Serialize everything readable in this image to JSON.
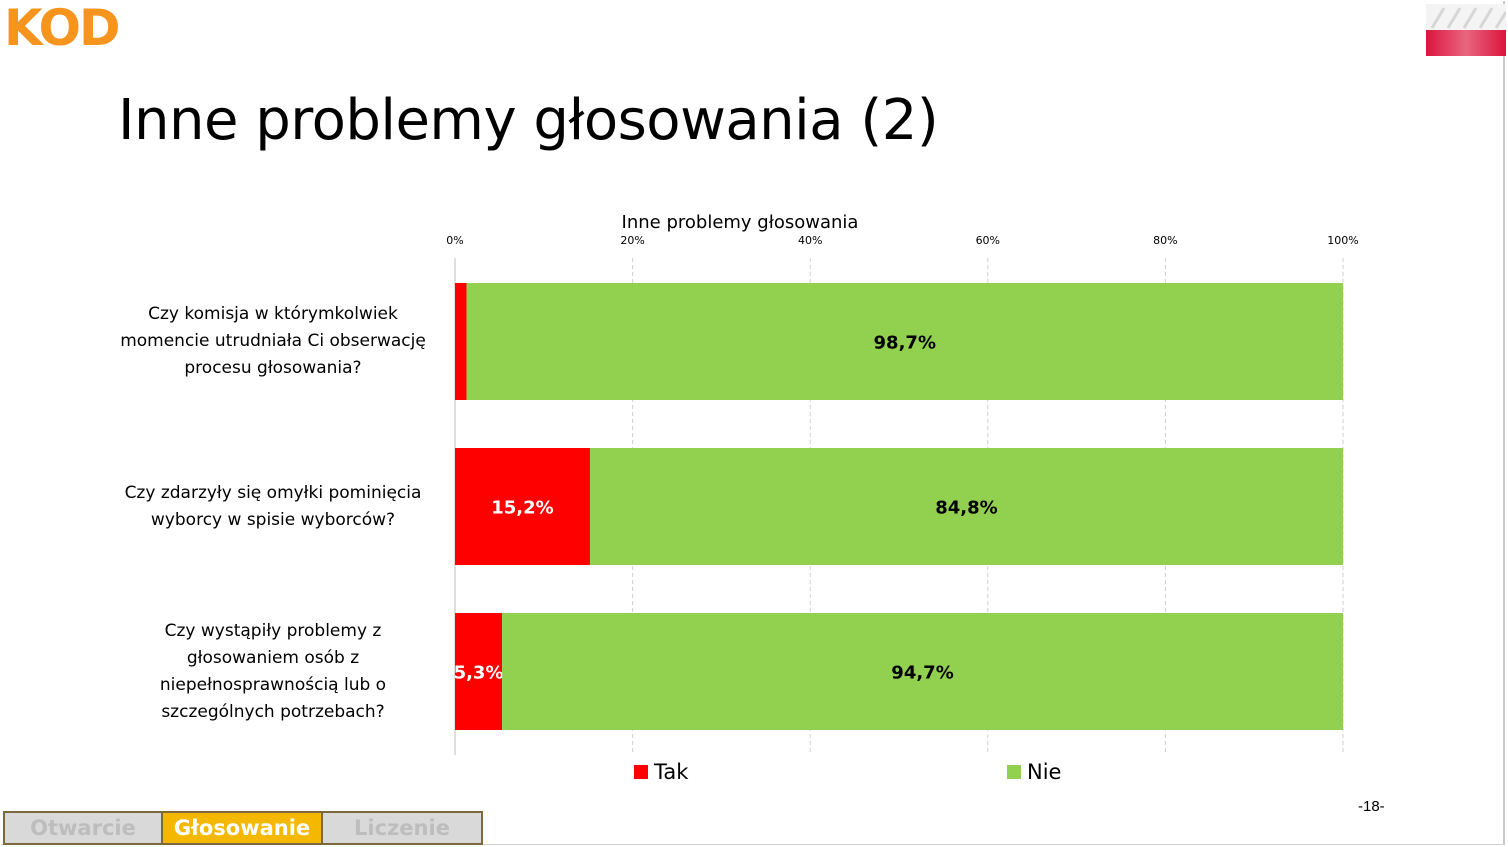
{
  "header": {
    "logo_text": "KOD",
    "logo_color": "#f7941d",
    "flag_icon": "polish-flag-icon",
    "title": "Inne problemy głosowania (2)"
  },
  "chart_data": {
    "type": "bar",
    "orientation": "horizontal",
    "stacked": true,
    "title": "Inne problemy głosowania",
    "categories": [
      "Czy komisja w którymkolwiek momencie utrudniała Ci obserwację procesu głosowania?",
      "Czy zdarzyły się omyłki pominięcia wyborcy w spisie wyborców?",
      "Czy wystąpiły problemy z głosowaniem osób z niepełnosprawnością lub o szczególnych potrzebach?"
    ],
    "category_lines": [
      [
        "Czy komisja w którymkolwiek",
        "momencie utrudniała Ci obserwację",
        "procesu głosowania?"
      ],
      [
        "Czy zdarzyły się omyłki pominięcia",
        "wyborcy w spisie wyborców?"
      ],
      [
        "Czy wystąpiły problemy z",
        "głosowaniem osób z",
        "niepełnosprawnością lub o",
        "szczególnych potrzebach?"
      ]
    ],
    "series": [
      {
        "name": "Tak",
        "color": "#ff0000",
        "values": [
          1.3,
          15.2,
          5.3
        ],
        "labels": [
          "",
          "15,2%",
          "5,3%"
        ],
        "label_color": "#ffffff"
      },
      {
        "name": "Nie",
        "color": "#92d050",
        "values": [
          98.7,
          84.8,
          94.7
        ],
        "labels": [
          "98,7%",
          "84,8%",
          "94,7%"
        ],
        "label_color": "#000000"
      }
    ],
    "x_ticks": [
      "0%",
      "20%",
      "40%",
      "60%",
      "80%",
      "100%"
    ],
    "xlim": [
      0,
      100
    ],
    "x_axis_position": "top",
    "grid": true,
    "legend_position": "bottom"
  },
  "footer": {
    "page_number": "-18-",
    "tabs": [
      {
        "label": "Otwarcie",
        "active": false
      },
      {
        "label": "Głosowanie",
        "active": true
      },
      {
        "label": "Liczenie",
        "active": false
      }
    ]
  }
}
